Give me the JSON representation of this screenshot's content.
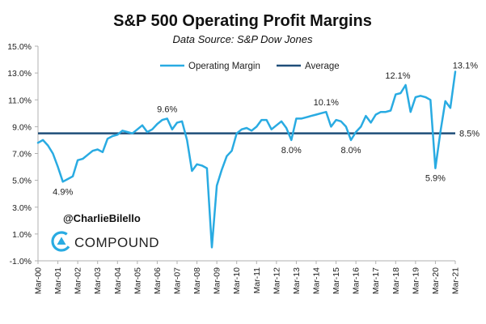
{
  "chart_data": {
    "type": "line",
    "title": "S&P 500 Operating Profit Margins",
    "subtitle": "Data Source: S&P Dow Jones",
    "xlabel": "",
    "ylabel": "",
    "ylim": [
      -1.0,
      15.0
    ],
    "yticks": [
      "15.0%",
      "13.0%",
      "11.0%",
      "9.0%",
      "7.0%",
      "5.0%",
      "3.0%",
      "1.0%",
      "-1.0%"
    ],
    "xticks": [
      "Mar-00",
      "Mar-01",
      "Mar-02",
      "Mar-03",
      "Mar-04",
      "Mar-05",
      "Mar-06",
      "Mar-07",
      "Mar-08",
      "Mar-09",
      "Mar-10",
      "Mar-11",
      "Mar-12",
      "Mar-13",
      "Mar-14",
      "Mar-15",
      "Mar-16",
      "Mar-17",
      "Mar-18",
      "Mar-19",
      "Mar-20",
      "Mar-21"
    ],
    "legend": [
      "Operating Margin",
      "Average"
    ],
    "legend_position": "top-center",
    "series": [
      {
        "name": "Operating Margin",
        "color": "#29ABE2",
        "values": [
          7.8,
          8.0,
          7.6,
          7.0,
          6.0,
          4.9,
          5.1,
          5.3,
          6.5,
          6.6,
          6.9,
          7.2,
          7.3,
          7.1,
          8.1,
          8.3,
          8.4,
          8.7,
          8.6,
          8.5,
          8.8,
          9.1,
          8.6,
          8.8,
          9.2,
          9.5,
          9.6,
          8.8,
          9.3,
          9.4,
          8.0,
          5.7,
          6.2,
          6.1,
          5.9,
          0.0,
          4.6,
          5.8,
          6.8,
          7.2,
          8.5,
          8.8,
          8.9,
          8.7,
          9.0,
          9.5,
          9.5,
          8.8,
          9.1,
          9.4,
          8.9,
          8.0,
          9.6,
          9.6,
          9.7,
          9.8,
          9.9,
          10.0,
          10.1,
          9.0,
          9.5,
          9.4,
          9.0,
          8.0,
          8.6,
          9.0,
          9.8,
          9.3,
          9.9,
          10.1,
          10.1,
          10.2,
          11.4,
          11.5,
          12.1,
          10.1,
          11.2,
          11.3,
          11.2,
          11.0,
          5.9,
          8.6,
          10.9,
          10.4,
          13.1
        ]
      },
      {
        "name": "Average",
        "color": "#1F4E79",
        "value": 8.5
      }
    ],
    "annotations": [
      {
        "text": "4.9%",
        "index": 5
      },
      {
        "text": "9.6%",
        "index": 26
      },
      {
        "text": "8.0%",
        "index": 51
      },
      {
        "text": "10.1%",
        "index": 58
      },
      {
        "text": "8.0%",
        "index": 63
      },
      {
        "text": "12.1%",
        "index": 74
      },
      {
        "text": "5.9%",
        "index": 80
      },
      {
        "text": "13.1%",
        "index": 84
      },
      {
        "text": "8.5%",
        "series": "Average"
      }
    ]
  },
  "branding": {
    "handle": "@CharlieBilello",
    "name": "COMPOUND",
    "logo_icon": "compound-logo-icon",
    "accent": "#29ABE2"
  }
}
